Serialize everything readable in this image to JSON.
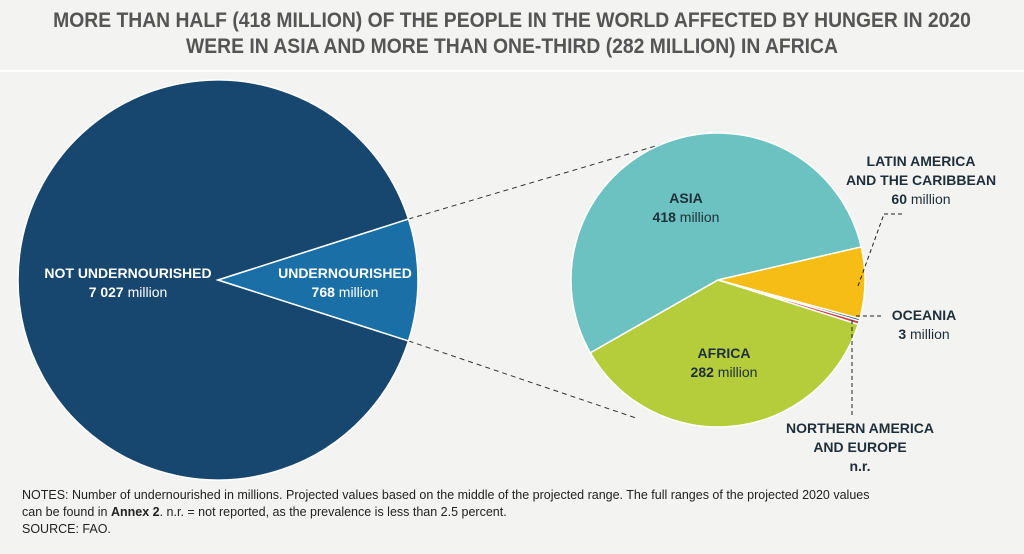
{
  "title": {
    "line1": "MORE THAN HALF (418 MILLION) OF THE PEOPLE IN THE WORLD AFFECTED BY HUNGER IN 2020",
    "line2": "WERE IN ASIA AND MORE THAN ONE-THIRD (282 MILLION) IN AFRICA"
  },
  "chart_data": [
    {
      "type": "pie",
      "slices": [
        {
          "name": "NOT UNDERNOURISHED",
          "value": 7027,
          "value_label": "7 027",
          "unit": "million",
          "color": "#17466e"
        },
        {
          "name": "UNDERNOURISHED",
          "value": 768,
          "value_label": "768",
          "unit": "million",
          "color": "#1a70a6"
        }
      ]
    },
    {
      "type": "pie",
      "slices": [
        {
          "name": "ASIA",
          "value": 418,
          "value_label": "418",
          "unit": "million",
          "color": "#6cc2c0"
        },
        {
          "name": "LATIN AMERICA AND THE CARIBBEAN",
          "name_lines": [
            "LATIN AMERICA",
            "AND THE CARIBBEAN"
          ],
          "value": 60,
          "value_label": "60",
          "unit": "million",
          "color": "#f7bd17"
        },
        {
          "name": "NORTHERN AMERICA AND EUROPE",
          "name_lines": [
            "NORTHERN AMERICA",
            "AND EUROPE"
          ],
          "value": 2,
          "value_label": "n.r.",
          "unit": "",
          "color": "#17466e"
        },
        {
          "name": "OCEANIA",
          "value": 3,
          "value_label": "3",
          "unit": "million",
          "color": "#c9484e"
        },
        {
          "name": "AFRICA",
          "value": 282,
          "value_label": "282",
          "unit": "million",
          "color": "#b5cd3b"
        }
      ]
    }
  ],
  "notes": {
    "line1": "NOTES: Number of undernourished in millions. Projected values based on the middle of the projected range. The full ranges of the projected 2020 values",
    "line2_pre": "can be found in ",
    "line2_bold": "Annex 2",
    "line2_post": ". n.r. = not reported, as the prevalence is less than 2.5 percent.",
    "source": "SOURCE: FAO."
  }
}
